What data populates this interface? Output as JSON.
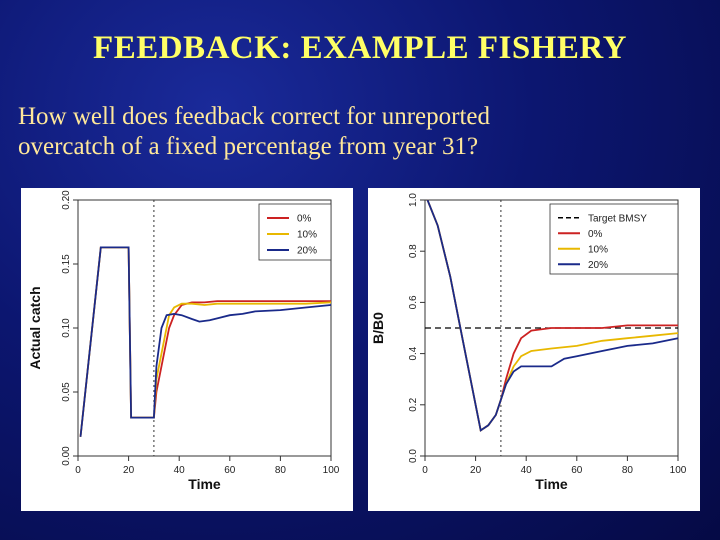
{
  "slide": {
    "title": "FEEDBACK: EXAMPLE FISHERY",
    "question_line1": "How well does feedback correct for unreported",
    "question_line2": "overcatch of a fixed percentage from year 31?"
  },
  "chart_data": [
    {
      "type": "line",
      "xlabel": "Time",
      "ylabel": "Actual catch",
      "xlim": [
        0,
        100
      ],
      "ylim": [
        0.0,
        0.2
      ],
      "xticks": [
        "0",
        "20",
        "40",
        "60",
        "80",
        "100"
      ],
      "yticks": [
        "0.00",
        "0.05",
        "0.10",
        "0.15",
        "0.20"
      ],
      "vline_x": 30,
      "legend_position": "top-right",
      "series": [
        {
          "name": "0%",
          "color": "#cc2222",
          "x": [
            1,
            9,
            10,
            20,
            21,
            30,
            31,
            34,
            36,
            38,
            41,
            45,
            50,
            55,
            60,
            70,
            80,
            90,
            100
          ],
          "y": [
            0.015,
            0.163,
            0.163,
            0.163,
            0.03,
            0.03,
            0.05,
            0.08,
            0.1,
            0.11,
            0.118,
            0.12,
            0.12,
            0.121,
            0.121,
            0.121,
            0.121,
            0.121,
            0.121
          ]
        },
        {
          "name": "10%",
          "color": "#e8b800",
          "x": [
            1,
            9,
            10,
            20,
            21,
            30,
            31,
            34,
            36,
            38,
            41,
            45,
            50,
            55,
            60,
            70,
            80,
            90,
            100
          ],
          "y": [
            0.015,
            0.163,
            0.163,
            0.163,
            0.03,
            0.03,
            0.06,
            0.09,
            0.11,
            0.116,
            0.119,
            0.119,
            0.118,
            0.119,
            0.119,
            0.119,
            0.119,
            0.119,
            0.12
          ]
        },
        {
          "name": "20%",
          "color": "#1a2a8a",
          "x": [
            1,
            9,
            10,
            20,
            21,
            30,
            31,
            33,
            35,
            38,
            41,
            45,
            48,
            52,
            56,
            60,
            65,
            70,
            80,
            90,
            100
          ],
          "y": [
            0.015,
            0.163,
            0.163,
            0.163,
            0.03,
            0.03,
            0.07,
            0.1,
            0.11,
            0.111,
            0.11,
            0.107,
            0.105,
            0.106,
            0.108,
            0.11,
            0.111,
            0.113,
            0.114,
            0.116,
            0.118
          ]
        }
      ]
    },
    {
      "type": "line",
      "xlabel": "Time",
      "ylabel": "B/B0",
      "xlim": [
        0,
        100
      ],
      "ylim": [
        0.0,
        1.0
      ],
      "xticks": [
        "0",
        "20",
        "40",
        "60",
        "80",
        "100"
      ],
      "yticks": [
        "0.0",
        "0.2",
        "0.4",
        "0.6",
        "0.8",
        "1.0"
      ],
      "vline_x": 30,
      "hline_y": 0.5,
      "legend_position": "top-right",
      "series": [
        {
          "name": "Target BMSY",
          "color": "#000000",
          "dashed": true,
          "x": [
            0,
            100
          ],
          "y": [
            0.5,
            0.5
          ]
        },
        {
          "name": "0%",
          "color": "#cc2222",
          "x": [
            1,
            5,
            10,
            15,
            20,
            22,
            25,
            28,
            30,
            32,
            35,
            38,
            42,
            50,
            60,
            70,
            80,
            90,
            100
          ],
          "y": [
            1.0,
            0.9,
            0.7,
            0.45,
            0.2,
            0.1,
            0.12,
            0.16,
            0.22,
            0.3,
            0.4,
            0.46,
            0.49,
            0.5,
            0.5,
            0.5,
            0.51,
            0.51,
            0.51
          ]
        },
        {
          "name": "10%",
          "color": "#e8b800",
          "x": [
            1,
            5,
            10,
            15,
            20,
            22,
            25,
            28,
            30,
            32,
            35,
            38,
            42,
            50,
            60,
            70,
            80,
            90,
            100
          ],
          "y": [
            1.0,
            0.9,
            0.7,
            0.45,
            0.2,
            0.1,
            0.12,
            0.16,
            0.22,
            0.28,
            0.35,
            0.39,
            0.41,
            0.42,
            0.43,
            0.45,
            0.46,
            0.47,
            0.48
          ]
        },
        {
          "name": "20%",
          "color": "#1a2a8a",
          "x": [
            1,
            5,
            10,
            15,
            20,
            22,
            25,
            28,
            30,
            32,
            35,
            38,
            42,
            50,
            55,
            60,
            70,
            80,
            90,
            100
          ],
          "y": [
            1.0,
            0.9,
            0.7,
            0.45,
            0.2,
            0.1,
            0.12,
            0.16,
            0.22,
            0.28,
            0.33,
            0.35,
            0.35,
            0.35,
            0.38,
            0.39,
            0.41,
            0.43,
            0.44,
            0.46
          ]
        }
      ]
    }
  ]
}
